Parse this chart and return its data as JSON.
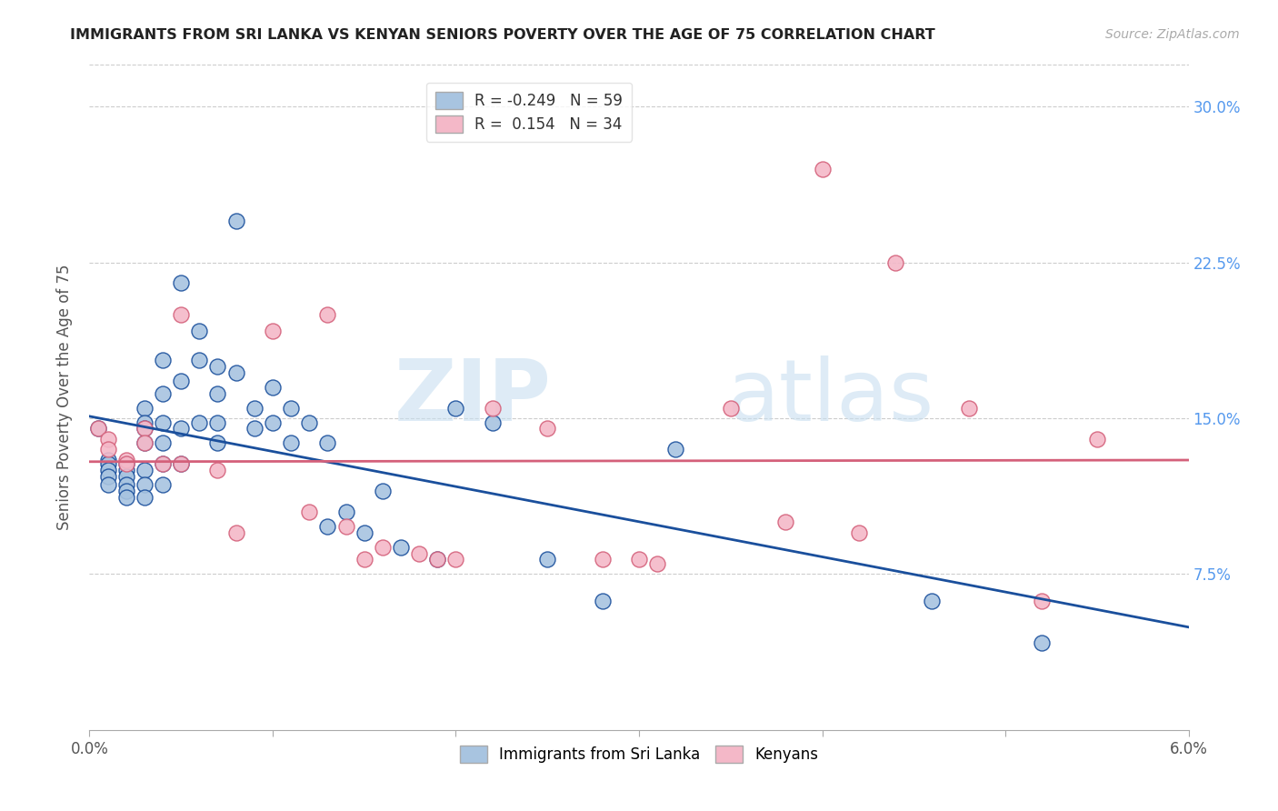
{
  "title": "IMMIGRANTS FROM SRI LANKA VS KENYAN SENIORS POVERTY OVER THE AGE OF 75 CORRELATION CHART",
  "source": "Source: ZipAtlas.com",
  "ylabel": "Seniors Poverty Over the Age of 75",
  "xlabel_blue": "Immigrants from Sri Lanka",
  "xlabel_pink": "Kenyans",
  "r_blue": -0.249,
  "n_blue": 59,
  "r_pink": 0.154,
  "n_pink": 34,
  "xlim": [
    0.0,
    0.06
  ],
  "ylim": [
    0.0,
    0.32
  ],
  "yticks": [
    0.0,
    0.075,
    0.15,
    0.225,
    0.3
  ],
  "ytick_labels": [
    "",
    "7.5%",
    "15.0%",
    "22.5%",
    "30.0%"
  ],
  "xticks": [
    0.0,
    0.01,
    0.02,
    0.03,
    0.04,
    0.05,
    0.06
  ],
  "xtick_labels": [
    "0.0%",
    "",
    "",
    "",
    "",
    "",
    "6.0%"
  ],
  "color_blue": "#a8c4e0",
  "color_blue_line": "#1a4f9c",
  "color_pink": "#f4b8c8",
  "color_pink_line": "#d4607a",
  "watermark_zip": "ZIP",
  "watermark_atlas": "atlas",
  "blue_x": [
    0.0005,
    0.001,
    0.001,
    0.001,
    0.001,
    0.001,
    0.002,
    0.002,
    0.002,
    0.002,
    0.002,
    0.002,
    0.003,
    0.003,
    0.003,
    0.003,
    0.003,
    0.003,
    0.003,
    0.004,
    0.004,
    0.004,
    0.004,
    0.004,
    0.004,
    0.005,
    0.005,
    0.005,
    0.005,
    0.006,
    0.006,
    0.006,
    0.007,
    0.007,
    0.007,
    0.007,
    0.008,
    0.008,
    0.009,
    0.009,
    0.01,
    0.01,
    0.011,
    0.011,
    0.012,
    0.013,
    0.013,
    0.014,
    0.015,
    0.016,
    0.017,
    0.019,
    0.02,
    0.022,
    0.025,
    0.028,
    0.032,
    0.046,
    0.052
  ],
  "blue_y": [
    0.145,
    0.13,
    0.128,
    0.125,
    0.122,
    0.118,
    0.128,
    0.125,
    0.122,
    0.118,
    0.115,
    0.112,
    0.155,
    0.148,
    0.145,
    0.138,
    0.125,
    0.118,
    0.112,
    0.178,
    0.162,
    0.148,
    0.138,
    0.128,
    0.118,
    0.215,
    0.168,
    0.145,
    0.128,
    0.192,
    0.178,
    0.148,
    0.175,
    0.162,
    0.148,
    0.138,
    0.245,
    0.172,
    0.155,
    0.145,
    0.165,
    0.148,
    0.155,
    0.138,
    0.148,
    0.138,
    0.098,
    0.105,
    0.095,
    0.115,
    0.088,
    0.082,
    0.155,
    0.148,
    0.082,
    0.062,
    0.135,
    0.062,
    0.042
  ],
  "pink_x": [
    0.0005,
    0.001,
    0.001,
    0.002,
    0.002,
    0.003,
    0.003,
    0.004,
    0.005,
    0.005,
    0.007,
    0.008,
    0.01,
    0.012,
    0.013,
    0.014,
    0.015,
    0.016,
    0.018,
    0.019,
    0.02,
    0.022,
    0.025,
    0.028,
    0.03,
    0.031,
    0.035,
    0.038,
    0.04,
    0.042,
    0.044,
    0.048,
    0.052,
    0.055
  ],
  "pink_y": [
    0.145,
    0.14,
    0.135,
    0.13,
    0.128,
    0.145,
    0.138,
    0.128,
    0.2,
    0.128,
    0.125,
    0.095,
    0.192,
    0.105,
    0.2,
    0.098,
    0.082,
    0.088,
    0.085,
    0.082,
    0.082,
    0.155,
    0.145,
    0.082,
    0.082,
    0.08,
    0.155,
    0.1,
    0.27,
    0.095,
    0.225,
    0.155,
    0.062,
    0.14
  ]
}
